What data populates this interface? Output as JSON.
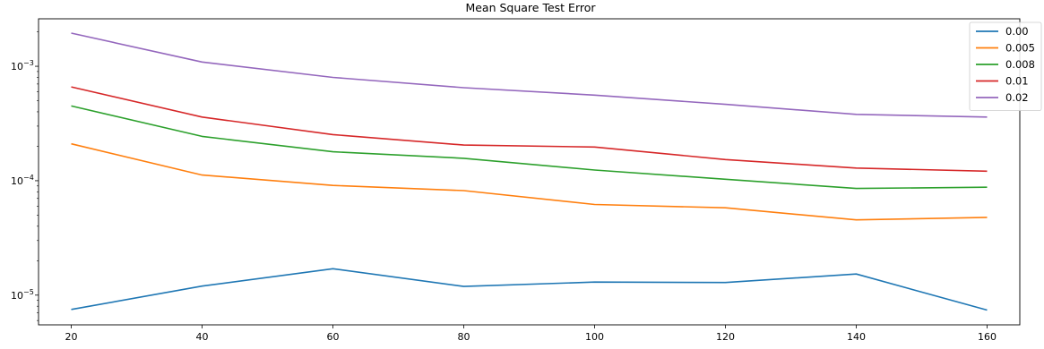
{
  "chart_data": {
    "type": "line",
    "title": "Mean Square Test Error",
    "xlabel": "",
    "ylabel": "",
    "yscale": "log",
    "x": [
      20,
      40,
      60,
      80,
      100,
      120,
      140,
      160
    ],
    "xticks": [
      "20",
      "40",
      "60",
      "80",
      "100",
      "120",
      "140",
      "160"
    ],
    "xlim": [
      15,
      165
    ],
    "ylim": [
      5.5e-06,
      0.0026
    ],
    "yticks": [
      {
        "value": 1e-05,
        "base": "10",
        "exp": "−5"
      },
      {
        "value": 0.0001,
        "base": "10",
        "exp": "−4"
      },
      {
        "value": 0.001,
        "base": "10",
        "exp": "−3"
      }
    ],
    "grid": false,
    "legend_position": "top-right",
    "series": [
      {
        "name": "0.00",
        "color": "#1f77b4",
        "values": [
          7.5e-06,
          1.2e-05,
          1.7e-05,
          1.19e-05,
          1.3e-05,
          1.29e-05,
          1.53e-05,
          7.4e-06
        ]
      },
      {
        "name": "0.005",
        "color": "#ff7f0e",
        "values": [
          0.00021,
          0.000112,
          9.1e-05,
          8.2e-05,
          6.2e-05,
          5.8e-05,
          4.55e-05,
          4.78e-05
        ]
      },
      {
        "name": "0.008",
        "color": "#2ca02c",
        "values": [
          0.00045,
          0.000244,
          0.000179,
          0.000157,
          0.000124,
          0.000103,
          8.56e-05,
          8.77e-05
        ]
      },
      {
        "name": "0.01",
        "color": "#d62728",
        "values": [
          0.00066,
          0.00036,
          0.000253,
          0.000205,
          0.000197,
          0.000153,
          0.000129,
          0.000121
        ]
      },
      {
        "name": "0.02",
        "color": "#9467bd",
        "values": [
          0.00195,
          0.00109,
          0.0008,
          0.00065,
          0.00056,
          0.000465,
          0.00038,
          0.00036
        ]
      }
    ]
  }
}
